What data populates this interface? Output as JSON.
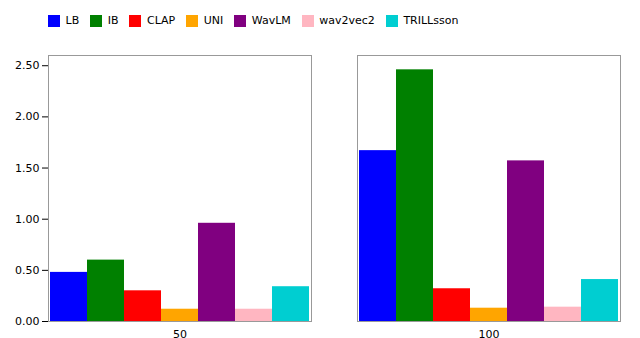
{
  "chart_data": {
    "type": "bar",
    "categories": [
      "50",
      "100"
    ],
    "series": [
      {
        "name": "LB",
        "color": "#0000ff",
        "values": [
          0.48,
          1.67
        ]
      },
      {
        "name": "IB",
        "color": "#008000",
        "values": [
          0.6,
          2.46
        ]
      },
      {
        "name": "CLAP",
        "color": "#ff0000",
        "values": [
          0.3,
          0.32
        ]
      },
      {
        "name": "UNI",
        "color": "#ffa500",
        "values": [
          0.12,
          0.13
        ]
      },
      {
        "name": "WavLM",
        "color": "#800080",
        "values": [
          0.96,
          1.57
        ]
      },
      {
        "name": "wav2vec2",
        "color": "#ffb6c1",
        "values": [
          0.12,
          0.14
        ]
      },
      {
        "name": "TRILLsson",
        "color": "#00ced1",
        "values": [
          0.34,
          0.41
        ]
      }
    ],
    "ylim": [
      0.0,
      2.6
    ],
    "yticks": [
      {
        "value": 0.0,
        "label": "0.00"
      },
      {
        "value": 0.5,
        "label": "0.50"
      },
      {
        "value": 1.0,
        "label": "1.00"
      },
      {
        "value": 1.5,
        "label": "1.50"
      },
      {
        "value": 2.0,
        "label": "2.00"
      },
      {
        "value": 2.5,
        "label": "2.50"
      }
    ],
    "grid": false,
    "legend": "upper left"
  }
}
